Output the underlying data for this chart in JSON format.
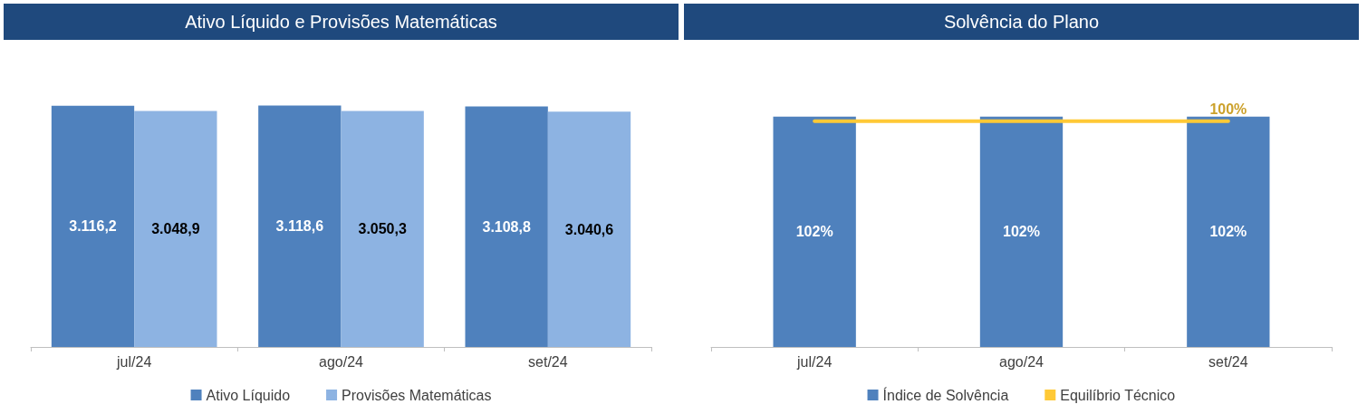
{
  "chart_data": [
    {
      "type": "bar",
      "title": "Ativo Líquido e Provisões Matemáticas",
      "categories": [
        "jul/24",
        "ago/24",
        "set/24"
      ],
      "series": [
        {
          "name": "Ativo Líquido",
          "color": "#4f81bd",
          "values": [
            3116.2,
            3118.6,
            3108.8
          ],
          "value_labels": [
            "3.116,2",
            "3.118,6",
            "3.108,8"
          ]
        },
        {
          "name": "Provisões Matemáticas",
          "color": "#8db3e2",
          "values": [
            3048.9,
            3050.3,
            3040.6
          ],
          "value_labels": [
            "3.048,9",
            "3.050,3",
            "3.040,6"
          ]
        }
      ],
      "legend": "bottom",
      "grid": false
    },
    {
      "type": "bar",
      "title": "Solvência do Plano",
      "categories": [
        "jul/24",
        "ago/24",
        "set/24"
      ],
      "series": [
        {
          "name": "Índice de Solvência",
          "color": "#4f81bd",
          "values": [
            102,
            102,
            102
          ],
          "value_labels": [
            "102%",
            "102%",
            "102%"
          ]
        },
        {
          "name": "Equilíbrio Técnico",
          "type": "line",
          "color": "#ffc936",
          "values": [
            100,
            100,
            100
          ],
          "value_labels": [
            null,
            null,
            "100%"
          ]
        }
      ],
      "legend": "bottom",
      "grid": false
    }
  ]
}
